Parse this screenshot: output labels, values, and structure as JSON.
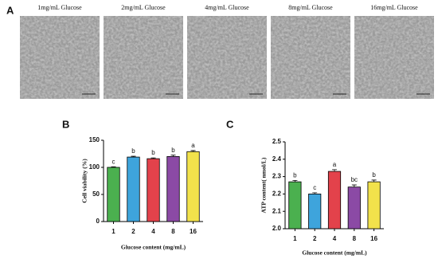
{
  "panel_labels": [
    "A",
    "B",
    "C"
  ],
  "images": {
    "captions": [
      "1mg/mL Glucose",
      "2mg/mL Glucose",
      "4mg/mL Glucose",
      "8mg/mL Glucose",
      "16mg/mL Glucose"
    ]
  },
  "chart_data": [
    {
      "type": "bar",
      "y_label": "Cell viability (%)",
      "x_label": "Glucose content (mg/mL)",
      "categories": [
        "1",
        "2",
        "4",
        "8",
        "16"
      ],
      "values": [
        100,
        119,
        116,
        120,
        129
      ],
      "errors": [
        1,
        1.5,
        1.5,
        2.5,
        2
      ],
      "significance": [
        "c",
        "b",
        "b",
        "b",
        "a"
      ],
      "colors": [
        "#4bb04f",
        "#3ea4dc",
        "#e3424b",
        "#8b4aa5",
        "#f2e24b"
      ],
      "ylim": [
        0,
        150
      ],
      "yticks": [
        0,
        50,
        100,
        150
      ]
    },
    {
      "type": "bar",
      "y_label": "ATP content( nmol/L)",
      "x_label": "Glucose content (mg/mL)",
      "categories": [
        "1",
        "2",
        "4",
        "8",
        "16"
      ],
      "values": [
        2.27,
        2.2,
        2.33,
        2.24,
        2.27
      ],
      "errors": [
        0.008,
        0.007,
        0.01,
        0.012,
        0.01
      ],
      "significance": [
        "b",
        "c",
        "a",
        "bc",
        "b"
      ],
      "colors": [
        "#4bb04f",
        "#3ea4dc",
        "#e3424b",
        "#8b4aa5",
        "#f2e24b"
      ],
      "ylim": [
        2.0,
        2.5
      ],
      "yticks": [
        {
          "value": 2,
          "label": "2.0"
        },
        {
          "value": 2.1,
          "label": "2.1"
        },
        {
          "value": 2.2,
          "label": "2.2"
        },
        {
          "value": 2.3,
          "label": "2.3"
        },
        {
          "value": 2.4,
          "label": "2.4"
        },
        {
          "value": 2.5,
          "label": "2.5"
        }
      ]
    }
  ]
}
